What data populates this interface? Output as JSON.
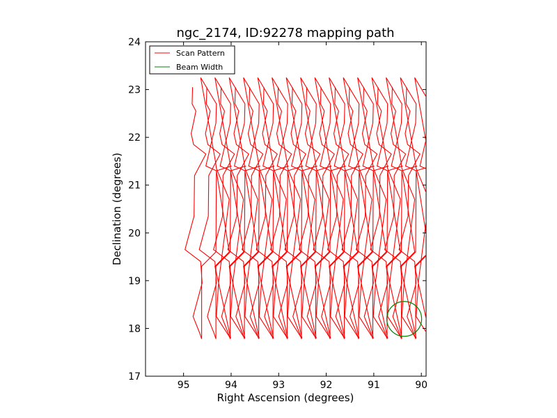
{
  "chart_data": {
    "type": "line",
    "title": "ngc_2174, ID:92278 mapping path",
    "xlabel": "Right Ascension (degrees)",
    "ylabel": "Declination (degrees)",
    "xlim": [
      95.8,
      89.9
    ],
    "ylim": [
      17,
      24
    ],
    "x_ticks": [
      95,
      94,
      93,
      92,
      91,
      90
    ],
    "y_ticks": [
      17,
      18,
      19,
      20,
      21,
      22,
      23,
      24
    ],
    "grid": false,
    "legend_position": "top-left",
    "legend": [
      {
        "label": "Scan Pattern",
        "color": "#ff0000"
      },
      {
        "label": "Beam Width",
        "color": "#008000"
      }
    ],
    "series": [
      {
        "name": "Scan Pattern",
        "color": "#ff0000",
        "x": [
          94.81,
          94.82,
          94.74,
          94.84,
          94.79,
          94.53,
          94.77,
          94.78,
          94.97,
          94.64,
          94.61,
          94.8,
          94.66,
          94.62,
          94.62,
          94.32,
          94.31,
          94.53,
          94.32,
          94.31,
          94.64,
          94.33,
          94.31,
          94.04,
          94.26,
          94.31,
          94.02,
          94.01,
          94.34,
          94.04,
          94.31,
          93.99
        ],
        "y": [
          23.05,
          22.7,
          22.55,
          22.08,
          21.85,
          21.65,
          21.2,
          20.35,
          19.65,
          19.4,
          18.95,
          18.25,
          17.9,
          17.78,
          19.3,
          19.6,
          21.3,
          21.4,
          22.3,
          22.7,
          23.25,
          21.5,
          21.35,
          20.7,
          19.0,
          18.25,
          17.8,
          17.8,
          19.3,
          19.6,
          21.3,
          21.4
        ]
      },
      {
        "name": "Beam Width",
        "color": "#008000",
        "x": [
          90.36
        ],
        "y": [
          18.2
        ]
      }
    ]
  }
}
